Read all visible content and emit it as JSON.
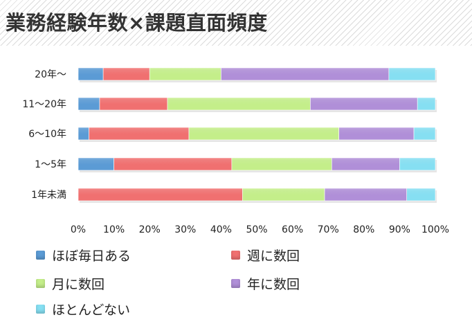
{
  "title": "業務経験年数×課題直面頻度",
  "chart_data": {
    "type": "bar",
    "orientation": "horizontal",
    "stacked": "percent",
    "categories": [
      "20年～",
      "11～20年",
      "6～10年",
      "1～5年",
      "1年未満"
    ],
    "series": [
      {
        "name": "ほぼ毎日ある",
        "color": "#5b9bd5",
        "values": [
          7,
          6,
          3,
          10,
          0
        ]
      },
      {
        "name": "週に数回",
        "color": "#f07070",
        "values": [
          13,
          19,
          28,
          33,
          46
        ]
      },
      {
        "name": "月に数回",
        "color": "#c4ee8a",
        "values": [
          20,
          40,
          42,
          28,
          23
        ]
      },
      {
        "name": "年に数回",
        "color": "#b08fd8",
        "values": [
          47,
          30,
          21,
          19,
          23
        ]
      },
      {
        "name": "ほとんどない",
        "color": "#86dff2",
        "values": [
          13,
          5,
          6,
          10,
          8
        ]
      }
    ],
    "xlim": [
      0,
      100
    ],
    "x_ticks": [
      "0%",
      "10%",
      "20%",
      "30%",
      "40%",
      "50%",
      "60%",
      "70%",
      "80%",
      "90%",
      "100%"
    ],
    "xlabel": "",
    "ylabel": "",
    "grid": false,
    "legend_position": "bottom"
  }
}
